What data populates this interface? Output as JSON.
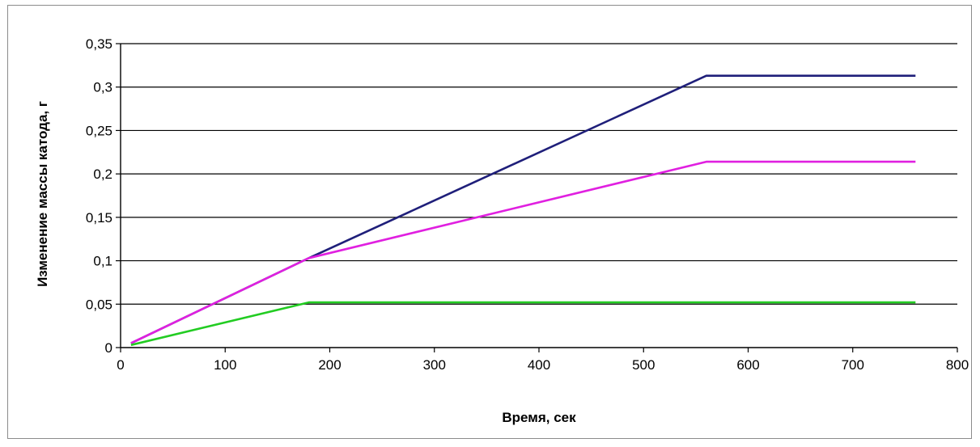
{
  "chart_data": {
    "type": "line",
    "title": "",
    "xlabel": "Время, сек",
    "ylabel": "Изменение массы катода, г",
    "xlim": [
      0,
      800
    ],
    "ylim": [
      0,
      0.35
    ],
    "x_ticks": [
      0,
      100,
      200,
      300,
      400,
      500,
      600,
      700,
      800
    ],
    "x_tick_labels": [
      "0",
      "100",
      "200",
      "300",
      "400",
      "500",
      "600",
      "700",
      "800"
    ],
    "y_ticks": [
      0,
      0.05,
      0.1,
      0.15,
      0.2,
      0.25,
      0.3,
      0.35
    ],
    "y_tick_labels": [
      "0",
      "0,05",
      "0,1",
      "0,15",
      "0,2",
      "0,25",
      "0,3",
      "0,35"
    ],
    "grid": "horizontal",
    "legend": "none",
    "series": [
      {
        "color": "#1f1f7a",
        "x": [
          10,
          180,
          560,
          760
        ],
        "y": [
          0.005,
          0.103,
          0.313,
          0.313
        ]
      },
      {
        "color": "#e020e0",
        "x": [
          10,
          180,
          560,
          760
        ],
        "y": [
          0.005,
          0.103,
          0.214,
          0.214
        ]
      },
      {
        "color": "#22cc22",
        "x": [
          10,
          180,
          760
        ],
        "y": [
          0.003,
          0.052,
          0.052
        ]
      }
    ]
  }
}
